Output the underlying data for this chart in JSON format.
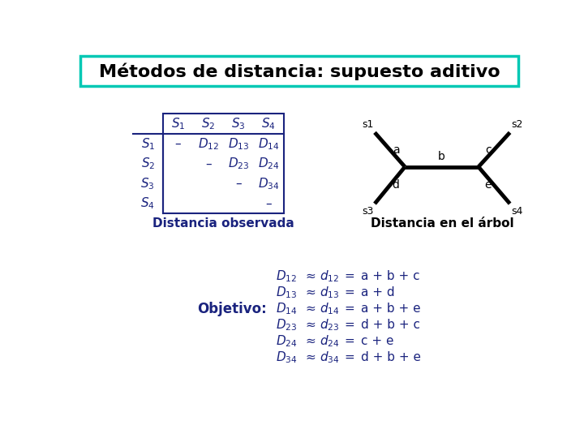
{
  "title": "Métodos de distancia: supuesto aditivo",
  "title_color": "#000000",
  "title_border_color": "#00c8b4",
  "bg_color": "#ffffff",
  "table_color": "#1a237e",
  "tree_color": "#000000",
  "caption_left": "Distancia observada",
  "caption_right": "Distancia en el árbol",
  "objectives_label": "Objetivo:",
  "rhs_formulas": [
    "a + b + c",
    "a + d",
    "a + b + e",
    "d + b + c",
    "c + e",
    "d + b + e"
  ],
  "lhs_subs": [
    "12",
    "13",
    "14",
    "23",
    "24",
    "34"
  ],
  "tree_lw": 3.5,
  "title_fontsize": 16,
  "table_fontsize": 11,
  "caption_fontsize": 11,
  "formula_fontsize": 11
}
